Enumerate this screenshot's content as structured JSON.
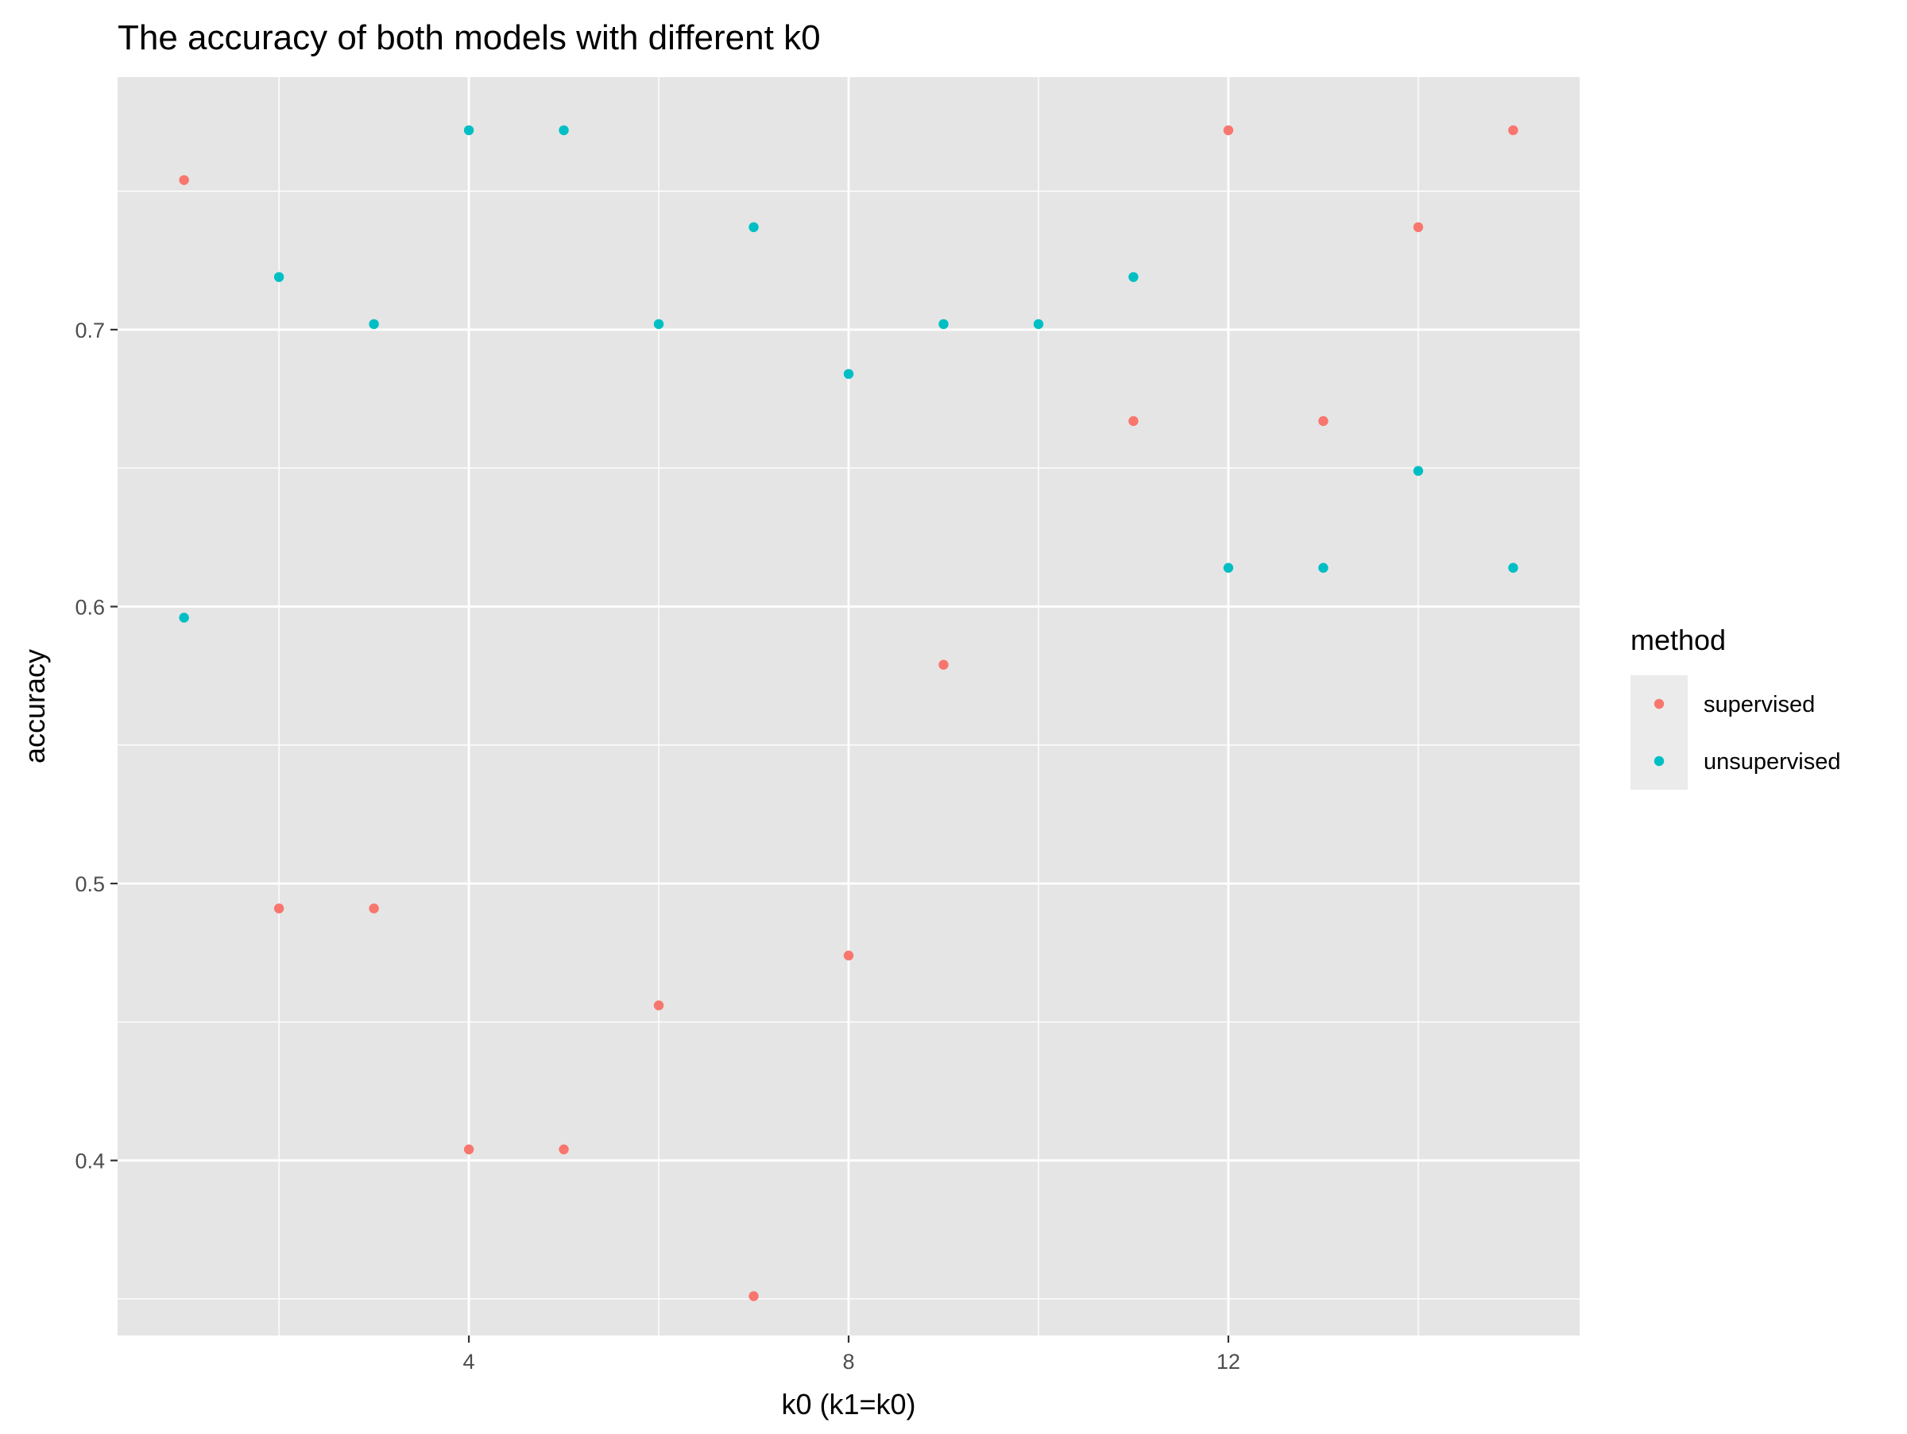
{
  "chart_data": {
    "type": "scatter",
    "title": "The accuracy of both models with different k0",
    "xlabel": "k0 (k1=k0)",
    "ylabel": "accuracy",
    "xlim": [
      0.3,
      15.7
    ],
    "ylim": [
      0.3368,
      0.7912
    ],
    "x_ticks": [
      4,
      8,
      12
    ],
    "x_tick_labels": [
      "4",
      "8",
      "12"
    ],
    "x_minor_ticks": [
      2,
      6,
      10,
      14
    ],
    "y_ticks": [
      0.4,
      0.5,
      0.6,
      0.7
    ],
    "y_tick_labels": [
      "0.4",
      "0.5",
      "0.6",
      "0.7"
    ],
    "y_minor_ticks": [
      0.35,
      0.45,
      0.55,
      0.65,
      0.75
    ],
    "grid": true,
    "panel_background": "#e5e5e5",
    "legend": {
      "title": "method",
      "position": "right"
    },
    "series": [
      {
        "name": "supervised",
        "color": "#F8766D",
        "x": [
          1,
          2,
          3,
          4,
          5,
          6,
          7,
          8,
          9,
          11,
          12,
          13,
          14,
          15
        ],
        "y": [
          0.754,
          0.491,
          0.491,
          0.404,
          0.404,
          0.456,
          0.351,
          0.474,
          0.579,
          0.667,
          0.772,
          0.667,
          0.737,
          0.772
        ]
      },
      {
        "name": "unsupervised",
        "color": "#00BFC4",
        "x": [
          1,
          2,
          3,
          4,
          5,
          6,
          7,
          8,
          9,
          10,
          11,
          12,
          13,
          14,
          15
        ],
        "y": [
          0.596,
          0.719,
          0.702,
          0.772,
          0.772,
          0.702,
          0.737,
          0.684,
          0.702,
          0.702,
          0.719,
          0.614,
          0.614,
          0.649,
          0.614
        ]
      }
    ]
  }
}
